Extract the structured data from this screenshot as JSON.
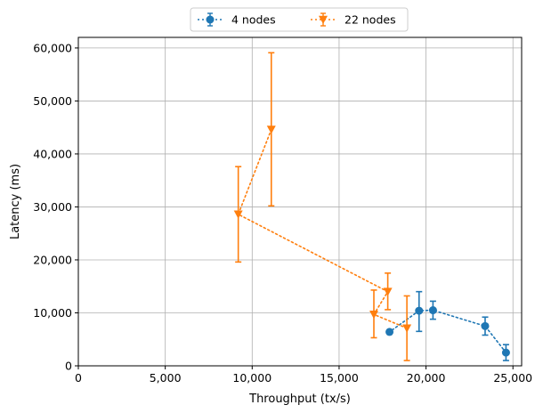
{
  "chart_data": {
    "type": "line",
    "title": "",
    "xlabel": "Throughput (tx/s)",
    "ylabel": "Latency (ms)",
    "xlim": [
      0,
      25500
    ],
    "ylim": [
      0,
      62000
    ],
    "x_ticks": [
      0,
      5000,
      10000,
      15000,
      20000,
      25000
    ],
    "y_ticks": [
      0,
      10000,
      20000,
      30000,
      40000,
      50000,
      60000
    ],
    "x_tick_labels": [
      "0",
      "5,000",
      "10,000",
      "15,000",
      "20,000",
      "25,000"
    ],
    "y_tick_labels": [
      "0",
      "10,000",
      "20,000",
      "30,000",
      "40,000",
      "50,000",
      "60,000"
    ],
    "grid": true,
    "legend_position": "top-center",
    "series": [
      {
        "name": "4 nodes",
        "color": "#1f77b4",
        "marker": "circle",
        "line_style": "dotted",
        "points": [
          {
            "x": 24600,
            "y": 2500,
            "err_low": 1000,
            "err_high": 4000
          },
          {
            "x": 23400,
            "y": 7500,
            "err_low": 5800,
            "err_high": 9200
          },
          {
            "x": 20400,
            "y": 10500,
            "err_low": 8800,
            "err_high": 12200
          },
          {
            "x": 19600,
            "y": 10400,
            "err_low": 6500,
            "err_high": 14000
          },
          {
            "x": 17900,
            "y": 6400,
            "err_low": null,
            "err_high": null
          }
        ]
      },
      {
        "name": "22 nodes",
        "color": "#ff7f0e",
        "marker": "triangle-down",
        "line_style": "dotted",
        "points": [
          {
            "x": 18900,
            "y": 7100,
            "err_low": 1000,
            "err_high": 13200
          },
          {
            "x": 17000,
            "y": 9700,
            "err_low": 5300,
            "err_high": 14300
          },
          {
            "x": 17800,
            "y": 14000,
            "err_low": 10600,
            "err_high": 17500
          },
          {
            "x": 9200,
            "y": 28600,
            "err_low": 19600,
            "err_high": 37600
          },
          {
            "x": 11100,
            "y": 44600,
            "err_low": 30200,
            "err_high": 59100
          }
        ]
      }
    ]
  }
}
